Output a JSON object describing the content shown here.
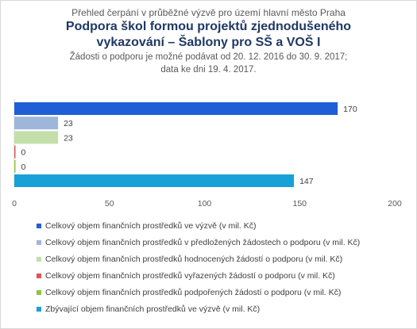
{
  "chart_data": {
    "type": "bar",
    "orientation": "horizontal",
    "supertitle": "Přehled čerpání v průběžné výzvě pro území  hlavní město Praha",
    "title_line1": "Podpora škol formou projektů zjednodušeného",
    "title_line2": "vykazování – Šablony pro SŠ a VOŠ I",
    "subtitle_line1": "Žádosti o podporu je možné  podávat od 20. 12. 2016 do 30. 9. 2017;",
    "subtitle_line2": "data ke dni 19. 4. 2017.",
    "xlim": [
      0,
      200
    ],
    "xticks": [
      "0",
      "50",
      "100",
      "150",
      "200"
    ],
    "grid": false,
    "legend_position": "bottom",
    "series": [
      {
        "name": "Celkový objem finančních prostředků ve výzvě (v mil. Kč)",
        "value": 170,
        "label": "170",
        "color": "#1f5fd6"
      },
      {
        "name": "Celkový objem finančních prostředků v předložených žádostech o podporu (v mil. Kč)",
        "value": 23,
        "label": "23",
        "color": "#9fb6db"
      },
      {
        "name": "Celkový objem finančních prostředků hodnocených žádostí o podporu (v mil. Kč)",
        "value": 23,
        "label": "23",
        "color": "#c4deaa"
      },
      {
        "name": "Celkový objem finančních prostředků vyřazených žádostí o podporu (v mil. Kč)",
        "value": 0,
        "label": "0",
        "color": "#e0554f"
      },
      {
        "name": "Celkový objem finančních prostředků podpořených žádostí o podporu (v mil. Kč)",
        "value": 0,
        "label": "0",
        "color": "#8cc63f"
      },
      {
        "name": "Zbývající objem finančních prostředků ve výzvě (v mil. Kč)",
        "value": 147,
        "label": "147",
        "color": "#1aa0d8"
      }
    ]
  }
}
